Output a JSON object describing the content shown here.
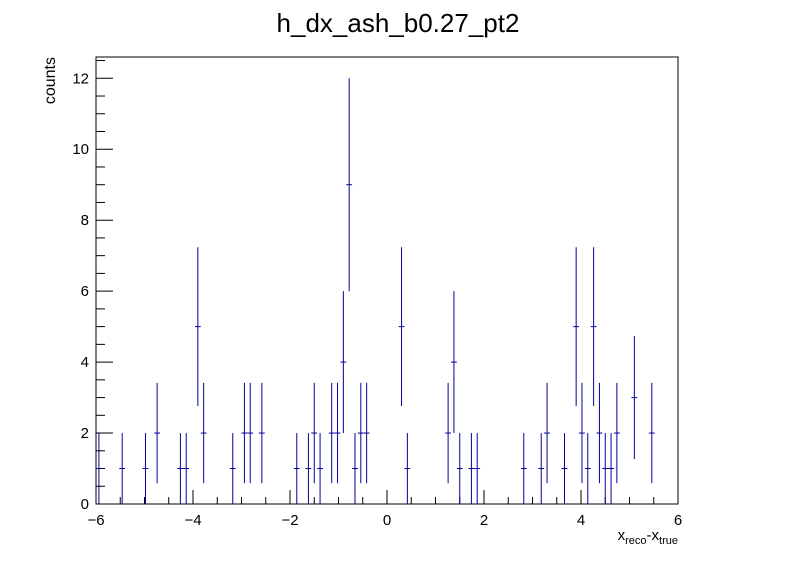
{
  "chart_data": {
    "type": "scatter",
    "title": "h_dx_ash_b0.27_pt2",
    "xlabel": {
      "main": "x",
      "sub1": "reco",
      "sep": "-x",
      "sub2": "true"
    },
    "ylabel": "counts",
    "xlim": [
      -6,
      6
    ],
    "ylim": [
      0,
      12.6
    ],
    "xticks": [
      -6,
      -4,
      -2,
      0,
      2,
      4,
      6
    ],
    "xtick_labels": [
      "−6",
      "−4",
      "−2",
      "0",
      "2",
      "4",
      "6"
    ],
    "yticks": [
      0,
      2,
      4,
      6,
      8,
      10,
      12
    ],
    "ytick_labels": [
      "0",
      "2",
      "4",
      "6",
      "8",
      "10",
      "12"
    ],
    "bin_width": 0.12,
    "grid": false,
    "legend": "none",
    "marker_color": "#000099",
    "points": [
      {
        "x": -5.94,
        "y": 1
      },
      {
        "x": -5.46,
        "y": 1
      },
      {
        "x": -4.98,
        "y": 1
      },
      {
        "x": -4.74,
        "y": 2
      },
      {
        "x": -4.26,
        "y": 1
      },
      {
        "x": -4.14,
        "y": 1
      },
      {
        "x": -3.9,
        "y": 5
      },
      {
        "x": -3.78,
        "y": 2
      },
      {
        "x": -3.18,
        "y": 1
      },
      {
        "x": -2.94,
        "y": 2
      },
      {
        "x": -2.82,
        "y": 2
      },
      {
        "x": -2.58,
        "y": 2
      },
      {
        "x": -1.86,
        "y": 1
      },
      {
        "x": -1.62,
        "y": 1
      },
      {
        "x": -1.5,
        "y": 2
      },
      {
        "x": -1.38,
        "y": 1
      },
      {
        "x": -1.14,
        "y": 2
      },
      {
        "x": -1.02,
        "y": 2
      },
      {
        "x": -0.9,
        "y": 4
      },
      {
        "x": -0.78,
        "y": 9
      },
      {
        "x": -0.66,
        "y": 1
      },
      {
        "x": -0.54,
        "y": 2
      },
      {
        "x": -0.42,
        "y": 2
      },
      {
        "x": 0.3,
        "y": 5
      },
      {
        "x": 0.42,
        "y": 1
      },
      {
        "x": 1.26,
        "y": 2
      },
      {
        "x": 1.38,
        "y": 4
      },
      {
        "x": 1.5,
        "y": 1
      },
      {
        "x": 1.74,
        "y": 1
      },
      {
        "x": 1.86,
        "y": 1
      },
      {
        "x": 2.82,
        "y": 1
      },
      {
        "x": 3.18,
        "y": 1
      },
      {
        "x": 3.3,
        "y": 2
      },
      {
        "x": 3.66,
        "y": 1
      },
      {
        "x": 3.9,
        "y": 5
      },
      {
        "x": 4.02,
        "y": 2
      },
      {
        "x": 4.14,
        "y": 1
      },
      {
        "x": 4.26,
        "y": 5
      },
      {
        "x": 4.38,
        "y": 2
      },
      {
        "x": 4.5,
        "y": 1
      },
      {
        "x": 4.62,
        "y": 1
      },
      {
        "x": 4.74,
        "y": 2
      },
      {
        "x": 5.1,
        "y": 3
      },
      {
        "x": 5.46,
        "y": 2
      }
    ]
  }
}
